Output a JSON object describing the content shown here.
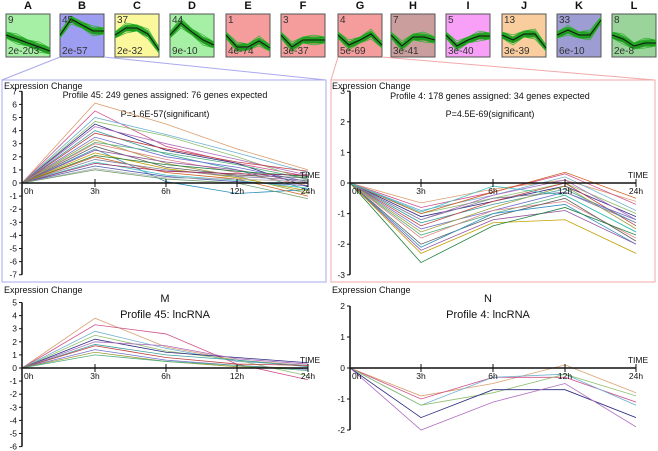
{
  "thumbnails": [
    {
      "letter": "A",
      "profile": "9",
      "pvalue": "2e-203",
      "color": "#a6f0a6",
      "model": [
        0,
        -0.4,
        -0.8,
        -1.2,
        -1.6
      ]
    },
    {
      "letter": "B",
      "profile": "45",
      "pvalue": "2e-57",
      "color": "#9d9df2",
      "model": [
        0,
        1.6,
        1.0,
        0.4,
        0.4
      ]
    },
    {
      "letter": "C",
      "profile": "37",
      "pvalue": "2e-32",
      "color": "#fbf79c",
      "model": [
        0,
        0.7,
        0.7,
        0.1,
        -1.5
      ]
    },
    {
      "letter": "D",
      "profile": "44",
      "pvalue": "9e-10",
      "color": "#a6f0a6",
      "model": [
        0,
        1.2,
        0.3,
        -0.5,
        -1.0
      ]
    },
    {
      "letter": "E",
      "profile": "1",
      "pvalue": "4e-74",
      "color": "#f59c9c",
      "model": [
        0,
        -1.2,
        -1.2,
        -0.6,
        -1.3
      ]
    },
    {
      "letter": "F",
      "profile": "3",
      "pvalue": "3e-37",
      "color": "#f59c9c",
      "model": [
        0,
        -1.2,
        -0.5,
        -0.5,
        -0.5
      ]
    },
    {
      "letter": "G",
      "profile": "4",
      "pvalue": "5e-69",
      "color": "#f59c9c",
      "model": [
        0,
        -1.0,
        -0.5,
        0.1,
        -1.0
      ]
    },
    {
      "letter": "H",
      "profile": "7",
      "pvalue": "3e-41",
      "color": "#c99e9c",
      "model": [
        0,
        -1.1,
        -0.2,
        -0.2,
        -0.5
      ]
    },
    {
      "letter": "I",
      "profile": "5",
      "pvalue": "3e-40",
      "color": "#f8a0f8",
      "model": [
        0,
        -1.1,
        -0.5,
        -0.1,
        -0.1
      ]
    },
    {
      "letter": "J",
      "profile": "13",
      "pvalue": "3e-39",
      "color": "#f9cd9e",
      "model": [
        0,
        -0.5,
        0.1,
        0.1,
        -1.3
      ]
    },
    {
      "letter": "K",
      "profile": "33",
      "pvalue": "6e-10",
      "color": "#9d9dd4",
      "model": [
        0,
        0.5,
        0,
        0,
        1.5
      ]
    },
    {
      "letter": "L",
      "profile": "8",
      "pvalue": "2e-8",
      "color": "#9ad49a",
      "model": [
        0,
        -0.4,
        -1.1,
        -0.8,
        -0.8
      ]
    }
  ],
  "chart_data": [
    {
      "type": "line",
      "id": "B",
      "ylabel": "Expression Change",
      "xlabel": "TIME",
      "title": "Profile 45: 249 genes assigned: 76 genes expected",
      "subtitle": "P=1.6E-57(significant)",
      "border_color": "#a9a9ee",
      "categories": [
        "0h",
        "3h",
        "6h",
        "12h",
        "24h"
      ],
      "ylim": [
        -7,
        7
      ],
      "series": [
        [
          0,
          6.1,
          4.5,
          2.6,
          1.0
        ],
        [
          0,
          5.5,
          2.8,
          1.5,
          0.5
        ],
        [
          0,
          5.0,
          3.7,
          2.3,
          0.8
        ],
        [
          0,
          4.7,
          3.6,
          2.0,
          0.2
        ],
        [
          0,
          4.5,
          2.5,
          1.5,
          -0.3
        ],
        [
          0,
          4.3,
          3.0,
          1.8,
          0.6
        ],
        [
          0,
          4.0,
          2.2,
          1.0,
          -0.5
        ],
        [
          0,
          3.8,
          2.6,
          1.6,
          0.9
        ],
        [
          0,
          3.5,
          2.0,
          1.2,
          0.1
        ],
        [
          0,
          3.3,
          1.5,
          0.5,
          -0.8
        ],
        [
          0,
          3.1,
          2.3,
          1.4,
          0.3
        ],
        [
          0,
          3.0,
          1.8,
          0.8,
          -0.2
        ],
        [
          0,
          2.8,
          1.2,
          0.6,
          0.4
        ],
        [
          0,
          2.6,
          0.1,
          -0.8,
          -0.5
        ],
        [
          0,
          2.5,
          1.6,
          1.0,
          0.0
        ],
        [
          0,
          2.3,
          1.1,
          0.4,
          -0.6
        ],
        [
          0,
          2.1,
          1.4,
          0.9,
          0.5
        ],
        [
          0,
          2.0,
          0.8,
          0.3,
          -1.0
        ],
        [
          0,
          1.8,
          1.0,
          0.5,
          0.2
        ],
        [
          0,
          1.6,
          0.6,
          0.2,
          -0.4
        ],
        [
          0,
          1.5,
          0.9,
          0.7,
          0.6
        ],
        [
          0,
          1.3,
          0.5,
          0.1,
          -0.2
        ],
        [
          0,
          1.1,
          0.4,
          0.3,
          0.1
        ],
        [
          0,
          1.0,
          0.3,
          0.0,
          -1.2
        ]
      ]
    },
    {
      "type": "line",
      "id": "G",
      "ylabel": "Expression Change",
      "xlabel": "TIME",
      "title": "Profile 4: 178 genes assigned: 34 genes expected",
      "subtitle": "P=4.5E-69(significant)",
      "border_color": "#f2a9a9",
      "categories": [
        "0h",
        "3h",
        "6h",
        "12h",
        "24h"
      ],
      "ylim": [
        -3,
        3
      ],
      "series": [
        [
          0,
          -0.65,
          -0.2,
          0.1,
          -0.6
        ],
        [
          0,
          -0.8,
          -0.3,
          0.3,
          -0.7
        ],
        [
          0,
          -0.9,
          -0.4,
          0.2,
          -0.9
        ],
        [
          0,
          -1.0,
          -0.5,
          0.0,
          -1.0
        ],
        [
          0,
          -1.1,
          -0.6,
          -0.1,
          -1.1
        ],
        [
          0,
          -1.2,
          -0.4,
          0.1,
          -1.2
        ],
        [
          0,
          -1.3,
          -0.7,
          -0.2,
          -1.3
        ],
        [
          0,
          -1.4,
          -0.6,
          0.0,
          -1.4
        ],
        [
          0,
          -1.5,
          -0.9,
          -0.3,
          -1.2
        ],
        [
          0,
          -1.6,
          -0.8,
          -0.1,
          -1.5
        ],
        [
          0,
          -1.7,
          -1.0,
          -0.4,
          -1.6
        ],
        [
          0,
          -1.8,
          -0.9,
          -0.6,
          -1.8
        ],
        [
          0,
          -2.0,
          -1.1,
          -0.5,
          -1.9
        ],
        [
          0,
          -2.1,
          -1.0,
          -0.7,
          -2.0
        ],
        [
          0,
          -2.2,
          -1.2,
          -0.9,
          -2.0
        ],
        [
          0,
          -2.3,
          -1.3,
          -1.2,
          -2.3
        ],
        [
          0,
          -2.6,
          -1.4,
          -0.8,
          -1.7
        ],
        [
          0,
          -1.0,
          -0.3,
          0.35,
          -0.5
        ],
        [
          0,
          -1.2,
          -0.5,
          -0.3,
          -1.3
        ],
        [
          0,
          -0.95,
          -0.1,
          -0.4,
          -1.6
        ]
      ]
    },
    {
      "type": "line",
      "id": "M",
      "panel": "M",
      "ylabel": "Expression Change",
      "xlabel": "TIME",
      "title": "Profile 45:  lncRNA",
      "categories": [
        "0h",
        "3h",
        "6h",
        "12h",
        "24h"
      ],
      "ylim": [
        -6,
        5
      ],
      "series": [
        [
          0,
          3.8,
          1.6,
          0.6,
          0.2
        ],
        [
          0,
          3.3,
          2.6,
          0.3,
          -0.9
        ],
        [
          0,
          2.8,
          1.5,
          0.5,
          0.2
        ],
        [
          0,
          2.5,
          1.3,
          0.6,
          -0.6
        ],
        [
          0,
          2.2,
          1.2,
          0.8,
          0.4
        ],
        [
          0,
          2.0,
          1.7,
          0.7,
          0.3
        ],
        [
          0,
          1.8,
          1.0,
          0.6,
          0.1
        ],
        [
          0,
          1.7,
          0.8,
          0.3,
          0.2
        ],
        [
          0,
          1.4,
          0.6,
          0.2,
          -0.1
        ],
        [
          0,
          1.2,
          0.5,
          0.1,
          0.0
        ],
        [
          0,
          1.0,
          0.5,
          0.2,
          -0.2
        ]
      ]
    },
    {
      "type": "line",
      "id": "N",
      "panel": "N",
      "ylabel": "Expression Change",
      "xlabel": "TIME",
      "title": "Profile 4:  lncRNA",
      "categories": [
        "0h",
        "3h",
        "6h",
        "12h",
        "24h"
      ],
      "ylim": [
        -2,
        2
      ],
      "series": [
        [
          0,
          -0.9,
          -0.5,
          0.1,
          -0.8
        ],
        [
          0,
          -1.0,
          -0.3,
          -0.3,
          -1.1
        ],
        [
          0,
          -1.2,
          -0.3,
          -0.2,
          -1.2
        ],
        [
          0,
          -1.2,
          -0.8,
          -0.2,
          -0.9
        ],
        [
          0,
          -1.6,
          -0.7,
          -0.7,
          -1.6
        ],
        [
          0,
          -2.0,
          -1.1,
          -0.5,
          -1.9
        ]
      ]
    }
  ],
  "line_colors": [
    "#d9a070",
    "#d0508a",
    "#6fb0d0",
    "#8fbf6f",
    "#2a2a80",
    "#b070c0",
    "#40a0a0",
    "#c04040",
    "#7070d0",
    "#a0a040",
    "#50b080",
    "#e08080",
    "#606060",
    "#3090c0",
    "#9050a0",
    "#c0a000",
    "#208040",
    "#d06020",
    "#8080a0",
    "#40c0c0",
    "#a03060",
    "#5060b0",
    "#b0b0b0",
    "#70a070"
  ]
}
